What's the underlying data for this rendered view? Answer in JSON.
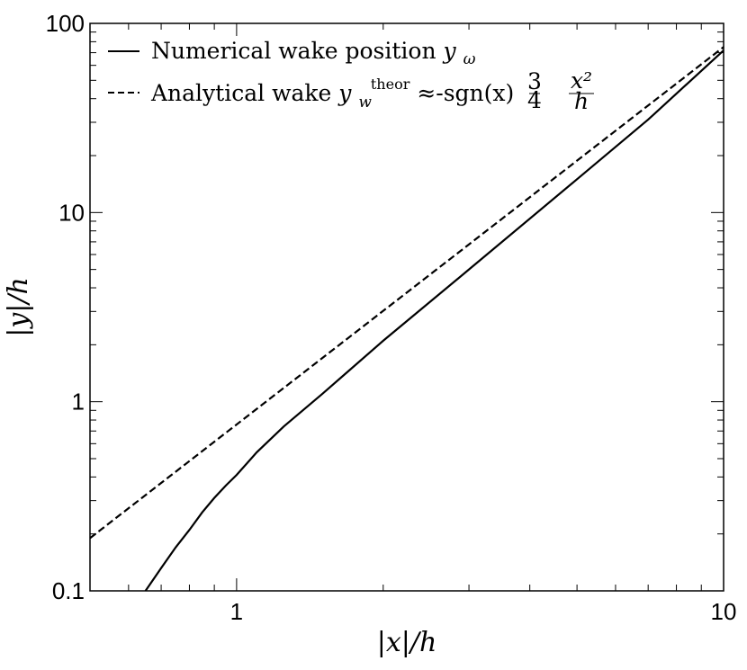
{
  "chart_data": {
    "type": "line",
    "title": "",
    "xlabel": "|x|/h",
    "ylabel": "|y|/h",
    "xscale": "log",
    "yscale": "log",
    "xlim": [
      0.5,
      10
    ],
    "ylim": [
      0.1,
      100
    ],
    "xticks": [
      1,
      10
    ],
    "xtick_labels": [
      "1",
      "10"
    ],
    "yticks": [
      0.1,
      1,
      10,
      100
    ],
    "ytick_labels": [
      "0.1",
      "1",
      "10",
      "100"
    ],
    "grid": false,
    "legend_position": "top-left",
    "series": [
      {
        "name": "Numerical wake position y_ω",
        "style": "solid",
        "color": "#000000",
        "x": [
          0.65,
          0.7,
          0.75,
          0.8,
          0.85,
          0.9,
          0.95,
          1.0,
          1.1,
          1.25,
          1.5,
          2.0,
          3.0,
          5.0,
          7.0,
          10.0
        ],
        "values": [
          0.1,
          0.132,
          0.17,
          0.21,
          0.26,
          0.31,
          0.36,
          0.41,
          0.54,
          0.74,
          1.1,
          2.1,
          5.0,
          15.0,
          31.0,
          72.0
        ]
      },
      {
        "name": "Analytical wake y_w^theor ≈-sgn(x) 3/4 x²/h",
        "style": "dashed",
        "color": "#000000",
        "x": [
          0.5,
          10
        ],
        "values": [
          0.19,
          75.0
        ]
      }
    ]
  },
  "legend": {
    "numerical_label": "Numerical wake position ",
    "numerical_symbol": "y",
    "numerical_sub": "ω",
    "analytical_label": "Analytical wake ",
    "analytical_symbol": "y",
    "analytical_sub": "w",
    "analytical_sup": "theor",
    "analytical_formula": " ≈-sgn(x)",
    "frac_num": "3",
    "frac_den": "4",
    "frac2_num": "x²",
    "frac2_den": "h"
  }
}
